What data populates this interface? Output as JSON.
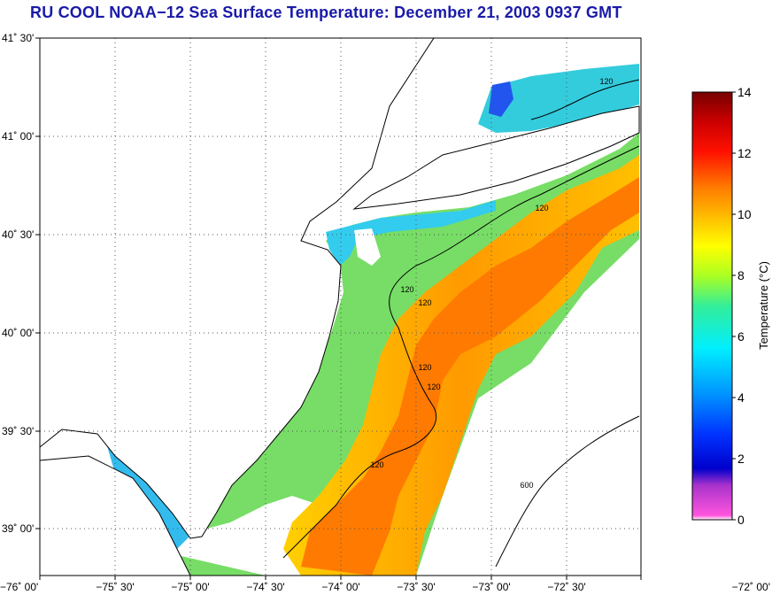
{
  "title": "RU COOL  NOAA−12  Sea Surface Temperature:  December 21, 2003 0937 GMT",
  "map": {
    "lat_ticks": [
      "41˚ 30'",
      "41˚ 00'",
      "40˚ 30'",
      "40˚ 00'",
      "39˚ 30'",
      "39˚ 00'"
    ],
    "lon_ticks": [
      "−76˚ 00'",
      "−75˚ 30'",
      "−75˚ 00'",
      "−74˚ 30'",
      "−74˚ 00'",
      "−73˚ 30'",
      "−73˚ 00'",
      "−72˚ 30'",
      "−72˚ 00'"
    ],
    "contours": [
      "120",
      "120",
      "120",
      "120",
      "120",
      "120",
      "120",
      "600"
    ]
  },
  "colorbar": {
    "label": "Temperature (°C)",
    "ticks": [
      "14",
      "12",
      "10",
      "8",
      "6",
      "4",
      "2",
      "0"
    ],
    "min": 0,
    "max": 14,
    "colors": [
      "#ff66cc",
      "#0000cc",
      "#0088ff",
      "#00eeff",
      "#22ee88",
      "#ccff00",
      "#ffcc00",
      "#ff7700",
      "#ee0000",
      "#880000"
    ]
  }
}
